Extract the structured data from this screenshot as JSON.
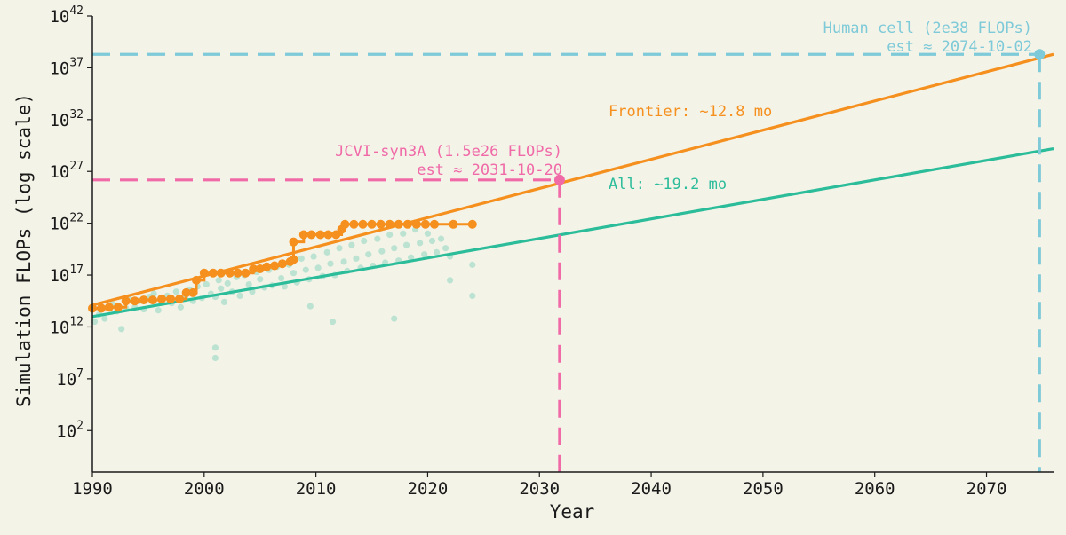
{
  "chart_data": {
    "type": "scatter",
    "xlabel": "Year",
    "ylabel": "Simulation FLOPs (log scale)",
    "xlim": [
      1990,
      2076
    ],
    "ylim_log10": [
      -2,
      42
    ],
    "y_scale": "log",
    "xticks": [
      1990,
      2000,
      2010,
      2020,
      2030,
      2040,
      2050,
      2060,
      2070
    ],
    "xtick_labels": [
      "1990",
      "2000",
      "2010",
      "2020",
      "2030",
      "2040",
      "2050",
      "2060",
      "2070"
    ],
    "yticks_log10": [
      2,
      7,
      12,
      17,
      22,
      27,
      32,
      37,
      42
    ],
    "ytick_labels": [
      {
        "base": "10",
        "exp": "2"
      },
      {
        "base": "10",
        "exp": "7"
      },
      {
        "base": "10",
        "exp": "12"
      },
      {
        "base": "10",
        "exp": "17"
      },
      {
        "base": "10",
        "exp": "22"
      },
      {
        "base": "10",
        "exp": "27"
      },
      {
        "base": "10",
        "exp": "32"
      },
      {
        "base": "10",
        "exp": "37"
      },
      {
        "base": "10",
        "exp": "42"
      }
    ],
    "grid": false,
    "colors": {
      "all": "#2bbc9a",
      "all_points": "#2bbc9a",
      "frontier": "#f5901e",
      "jcvi": "#f06aa8",
      "human": "#7ecad8",
      "background": "#f4f3e8"
    },
    "frontier_series": {
      "label": "Frontier: ~12.8 mo",
      "points": [
        [
          1990.0,
          13.8
        ],
        [
          1990.8,
          13.8
        ],
        [
          1991.5,
          13.9
        ],
        [
          1992.3,
          13.9
        ],
        [
          1993.0,
          14.5
        ],
        [
          1993.8,
          14.5
        ],
        [
          1994.6,
          14.6
        ],
        [
          1995.4,
          14.6
        ],
        [
          1996.2,
          14.7
        ],
        [
          1997.0,
          14.7
        ],
        [
          1997.8,
          14.7
        ],
        [
          1998.4,
          15.3
        ],
        [
          1999.0,
          15.3
        ],
        [
          1999.3,
          16.5
        ],
        [
          2000.0,
          17.2
        ],
        [
          2000.8,
          17.2
        ],
        [
          2001.5,
          17.2
        ],
        [
          2002.3,
          17.2
        ],
        [
          2003.0,
          17.2
        ],
        [
          2003.7,
          17.2
        ],
        [
          2004.4,
          17.6
        ],
        [
          2005.0,
          17.6
        ],
        [
          2005.6,
          17.8
        ],
        [
          2006.3,
          17.9
        ],
        [
          2007.0,
          18.1
        ],
        [
          2007.7,
          18.3
        ],
        [
          2008.0,
          18.5
        ],
        [
          2008.0,
          20.2
        ],
        [
          2008.9,
          20.9
        ],
        [
          2009.6,
          20.9
        ],
        [
          2010.4,
          20.9
        ],
        [
          2011.1,
          20.9
        ],
        [
          2011.8,
          20.9
        ],
        [
          2012.3,
          21.4
        ],
        [
          2012.6,
          21.9
        ],
        [
          2013.4,
          21.9
        ],
        [
          2014.2,
          21.9
        ],
        [
          2015.0,
          21.9
        ],
        [
          2015.8,
          21.9
        ],
        [
          2016.6,
          21.9
        ],
        [
          2017.4,
          21.9
        ],
        [
          2018.2,
          21.9
        ],
        [
          2019.0,
          21.9
        ],
        [
          2019.8,
          21.9
        ],
        [
          2020.6,
          21.9
        ],
        [
          2022.3,
          21.9
        ],
        [
          2024.0,
          21.9
        ]
      ],
      "fit": {
        "x": [
          1990,
          2076
        ],
        "y": [
          14.1,
          38.3
        ]
      }
    },
    "all_series": {
      "label": "All: ~19.2 mo",
      "fit": {
        "x": [
          1990,
          2076
        ],
        "y": [
          13.0,
          29.2
        ]
      },
      "points": [
        [
          1990.2,
          12.5
        ],
        [
          1990.6,
          13.2
        ],
        [
          1991.1,
          12.8
        ],
        [
          1991.4,
          13.9
        ],
        [
          1991.8,
          14.2
        ],
        [
          1992.2,
          13.5
        ],
        [
          1992.6,
          11.8
        ],
        [
          1993.0,
          13.8
        ],
        [
          1993.4,
          14.6
        ],
        [
          1993.8,
          13.9
        ],
        [
          1994.2,
          14.5
        ],
        [
          1994.6,
          13.7
        ],
        [
          1995.1,
          14.9
        ],
        [
          1995.5,
          15.2
        ],
        [
          1995.9,
          13.6
        ],
        [
          1996.3,
          14.6
        ],
        [
          1996.7,
          15.0
        ],
        [
          1997.1,
          14.3
        ],
        [
          1997.5,
          15.4
        ],
        [
          1997.9,
          13.9
        ],
        [
          1998.3,
          14.9
        ],
        [
          1998.7,
          15.6
        ],
        [
          1999.0,
          14.5
        ],
        [
          1999.4,
          15.9
        ],
        [
          1999.8,
          14.8
        ],
        [
          2000.2,
          16.1
        ],
        [
          2000.6,
          15.2
        ],
        [
          2001.0,
          14.9
        ],
        [
          2001.3,
          16.5
        ],
        [
          2001.5,
          15.7
        ],
        [
          2001.8,
          14.4
        ],
        [
          2002.1,
          16.2
        ],
        [
          2002.5,
          15.4
        ],
        [
          2002.9,
          16.8
        ],
        [
          2003.2,
          15.0
        ],
        [
          2003.6,
          17.0
        ],
        [
          2004.0,
          16.1
        ],
        [
          2004.3,
          15.4
        ],
        [
          2004.7,
          17.3
        ],
        [
          2005.0,
          16.6
        ],
        [
          2005.4,
          15.8
        ],
        [
          2005.8,
          17.5
        ],
        [
          2006.1,
          16.0
        ],
        [
          2006.5,
          17.8
        ],
        [
          2006.9,
          16.7
        ],
        [
          2007.2,
          15.9
        ],
        [
          2007.6,
          18.0
        ],
        [
          2008.0,
          17.2
        ],
        [
          2008.3,
          16.3
        ],
        [
          2008.7,
          18.6
        ],
        [
          2009.1,
          17.5
        ],
        [
          2009.4,
          16.6
        ],
        [
          2009.8,
          18.8
        ],
        [
          2010.2,
          17.7
        ],
        [
          2010.6,
          16.9
        ],
        [
          2011.0,
          19.2
        ],
        [
          2011.3,
          18.1
        ],
        [
          2011.7,
          17.0
        ],
        [
          2012.1,
          19.6
        ],
        [
          2012.5,
          18.3
        ],
        [
          2012.8,
          17.4
        ],
        [
          2013.2,
          19.9
        ],
        [
          2013.6,
          18.6
        ],
        [
          2014.0,
          17.7
        ],
        [
          2014.3,
          20.3
        ],
        [
          2014.7,
          19.0
        ],
        [
          2015.1,
          17.9
        ],
        [
          2015.5,
          20.5
        ],
        [
          2015.9,
          19.3
        ],
        [
          2016.2,
          18.2
        ],
        [
          2016.6,
          20.9
        ],
        [
          2017.0,
          19.6
        ],
        [
          2017.4,
          18.4
        ],
        [
          2017.8,
          21.0
        ],
        [
          2018.1,
          19.9
        ],
        [
          2018.5,
          18.7
        ],
        [
          2018.9,
          21.4
        ],
        [
          2019.3,
          20.1
        ],
        [
          2019.7,
          19.0
        ],
        [
          2020.0,
          21.0
        ],
        [
          2020.4,
          20.3
        ],
        [
          2020.8,
          19.2
        ],
        [
          2021.2,
          20.5
        ],
        [
          2021.6,
          19.6
        ],
        [
          2022.0,
          18.8
        ],
        [
          2024.0,
          18.0
        ],
        [
          2024.0,
          15.0
        ],
        [
          2001.0,
          10.0
        ],
        [
          2001.0,
          9.0
        ],
        [
          2009.5,
          14.0
        ],
        [
          2011.5,
          12.5
        ],
        [
          2017.0,
          12.8
        ],
        [
          2022.0,
          16.5
        ]
      ]
    },
    "annotations": [
      {
        "name": "jcvi",
        "line1": "JCVI-syn3A (1.5e26 FLOPs)",
        "line2": "est ≈ 2031-10-20",
        "x": 2031.8,
        "y_log10": 26.18
      },
      {
        "name": "human",
        "line1": "Human cell (2e38 FLOPs)",
        "line2": "est ≈ 2074-10-02",
        "x": 2074.75,
        "y_log10": 38.3
      }
    ]
  }
}
